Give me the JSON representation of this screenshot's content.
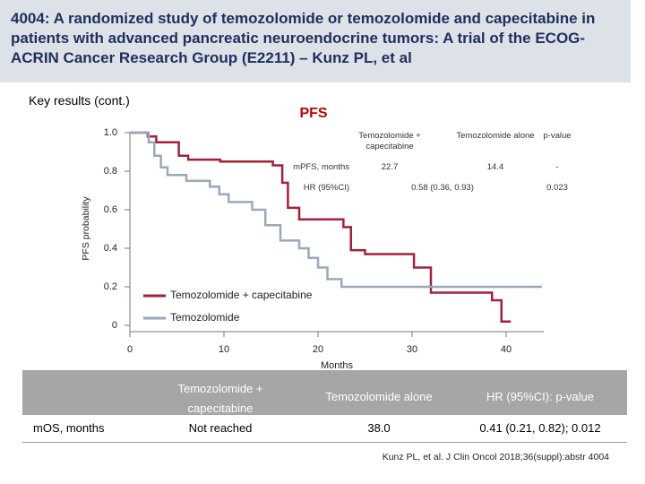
{
  "header": {
    "title": "4004: A randomized study of temozolomide or temozolomide and capecitabine in patients with advanced pancreatic neuroendocrine tumors: A trial of the ECOG-ACRIN Cancer Research Group (E2211) – Kunz PL, et al",
    "subtitle": "Key results (cont.)"
  },
  "chart_data": {
    "type": "step",
    "title": "PFS",
    "x_label": "Months",
    "y_label": "PFS probability",
    "xlim": [
      0,
      44
    ],
    "xticks": [
      0,
      10,
      20,
      30,
      40
    ],
    "ylim": [
      0,
      1
    ],
    "yticks": [
      0,
      0.2,
      0.4,
      0.6,
      0.8,
      {
        "value": 1,
        "label": "1.0"
      }
    ],
    "series": [
      {
        "name": "Temozolomide + capecitabine",
        "color": "#a3203a",
        "x": [
          0,
          1.9,
          2.8,
          5.2,
          6.2,
          9.6,
          15.2,
          16.2,
          16.8,
          18,
          22.7,
          23.5,
          25,
          30.2,
          32,
          38.5,
          39.5,
          40.5
        ],
        "values": [
          1.0,
          0.98,
          0.95,
          0.88,
          0.86,
          0.85,
          0.83,
          0.74,
          0.61,
          0.55,
          0.51,
          0.39,
          0.37,
          0.3,
          0.17,
          0.13,
          0.02,
          0.02
        ]
      },
      {
        "name": "Temozolomide",
        "color": "#9aa8bc",
        "x": [
          0,
          2,
          2.6,
          3.3,
          4,
          6,
          8.5,
          9.5,
          10.5,
          13,
          14.4,
          16,
          18,
          19,
          20,
          21,
          22.5,
          43.8
        ],
        "values": [
          1.0,
          0.95,
          0.88,
          0.82,
          0.78,
          0.75,
          0.72,
          0.68,
          0.64,
          0.6,
          0.52,
          0.44,
          0.4,
          0.35,
          0.3,
          0.24,
          0.2,
          0.2
        ]
      }
    ]
  },
  "inset_table": {
    "columns": [
      "Temozolomide + capecitabine",
      "Temozolomide alone",
      "p-value"
    ],
    "rows": [
      [
        "mPFS, months",
        "22.7",
        "14.4",
        "-"
      ],
      [
        "HR (95%CI)",
        "0.58 (0.36, 0.93)",
        "0.023"
      ]
    ]
  },
  "table": {
    "columns": [
      "Temozolomide + capecitabine",
      "Temozolomide alone",
      "HR (95%CI): p-value"
    ],
    "rows": [
      [
        "mOS, months",
        "Not reached",
        "38.0",
        "0.41 (0.21, 0.82); 0.012"
      ]
    ]
  },
  "citation": "Kunz PL, et al. J Clin Oncol 2018;36(suppl):abstr 4004"
}
